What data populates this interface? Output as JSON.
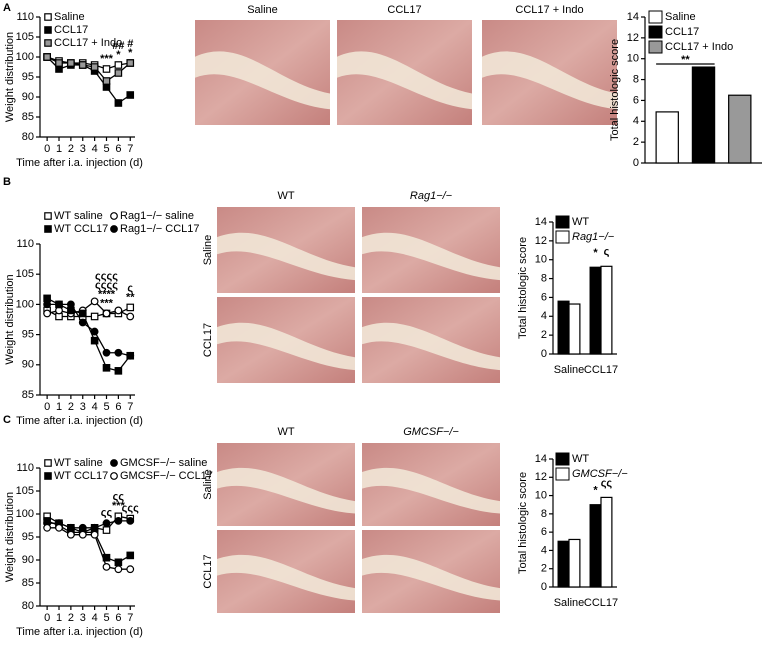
{
  "panel_labels": [
    "A",
    "B",
    "C"
  ],
  "histology": [
    {
      "columns": [
        "Saline",
        "CCL17",
        "CCL17 + Indo"
      ],
      "rows": []
    },
    {
      "columns": [
        "WT",
        "Rag1−/−"
      ],
      "rows": [
        "Saline",
        "CCL17"
      ]
    },
    {
      "columns": [
        "WT",
        "GMCSF−/−"
      ],
      "rows": [
        "Saline",
        "CCL17"
      ]
    }
  ],
  "chart_data": [
    {
      "type": "line",
      "xlabel": "Time after i.a. injection (d)",
      "ylabel": "Weight distribution",
      "x": [
        0,
        1,
        2,
        3,
        4,
        5,
        6,
        7
      ],
      "xlim": [
        -0.6,
        7.4
      ],
      "xticks": [
        0,
        1,
        2,
        3,
        4,
        5,
        6,
        7
      ],
      "ylim": [
        80,
        110
      ],
      "yticks": [
        80,
        85,
        90,
        95,
        100,
        105,
        110
      ],
      "series": [
        {
          "name": "Saline",
          "marker": "square",
          "color": "#ffffff",
          "values": [
            100,
            99,
            98.5,
            98.5,
            98,
            97,
            98,
            98.5
          ]
        },
        {
          "name": "CCL17",
          "marker": "square",
          "color": "#000000",
          "values": [
            100,
            97,
            98,
            98,
            96.5,
            92.5,
            88.5,
            90.5
          ]
        },
        {
          "name": "CCL17 + Indo",
          "marker": "square",
          "color": "#999999",
          "values": [
            100,
            98.5,
            98.5,
            98,
            97.5,
            94,
            96,
            98.5
          ]
        }
      ],
      "annotations": [
        {
          "x": 5,
          "lines": [
            "***"
          ]
        },
        {
          "x": 6,
          "lines": [
            "##",
            "*"
          ]
        },
        {
          "x": 7,
          "lines": [
            "#",
            "*"
          ]
        }
      ]
    },
    {
      "type": "bar",
      "ylabel": "Total histologic score",
      "categories": [
        null
      ],
      "ylim": [
        0,
        14
      ],
      "yticks": [
        0,
        2,
        4,
        6,
        8,
        10,
        12,
        14
      ],
      "series": [
        {
          "name": "Saline",
          "color": "#ffffff",
          "values": [
            4.9
          ]
        },
        {
          "name": "CCL17",
          "color": "#000000",
          "values": [
            9.2
          ]
        },
        {
          "name": "CCL17 + Indo",
          "color": "#999999",
          "values": [
            6.5
          ]
        }
      ],
      "annotations": [
        {
          "text": "**",
          "bars": [
            0,
            1
          ]
        }
      ]
    },
    {
      "type": "line",
      "xlabel": "Time after i.a. injection (d)",
      "ylabel": "Weight distribution",
      "x": [
        0,
        1,
        2,
        3,
        4,
        5,
        6,
        7
      ],
      "xlim": [
        -0.6,
        7.4
      ],
      "xticks": [
        0,
        1,
        2,
        3,
        4,
        5,
        6,
        7
      ],
      "ylim": [
        85,
        110
      ],
      "yticks": [
        85,
        90,
        95,
        100,
        105,
        110
      ],
      "series": [
        {
          "name": "WT saline",
          "marker": "square",
          "color": "#ffffff",
          "values": [
            99,
            98,
            98,
            98,
            98,
            98.5,
            98.5,
            99.5
          ]
        },
        {
          "name": "Rag1−/− saline",
          "marker": "circle",
          "color": "#ffffff",
          "values": [
            98.5,
            99,
            98.5,
            99,
            100.5,
            98.5,
            99,
            98
          ]
        },
        {
          "name": "WT CCL17",
          "marker": "square",
          "color": "#000000",
          "values": [
            101,
            100,
            99,
            98.5,
            94,
            89.5,
            89,
            91.5
          ]
        },
        {
          "name": "Rag1−/− CCL17",
          "marker": "circle",
          "color": "#000000",
          "values": [
            100,
            100,
            100,
            97,
            95.5,
            92,
            92,
            91.5
          ]
        }
      ],
      "annotations": [
        {
          "x": 5,
          "lines": [
            "ςςςς",
            "ςςςς",
            "****",
            "***"
          ]
        },
        {
          "x": 7,
          "lines": [
            "ς",
            "**"
          ]
        }
      ]
    },
    {
      "type": "bar",
      "ylabel": "Total histologic score",
      "categories": [
        "Saline",
        "CCL17"
      ],
      "ylim": [
        0,
        14
      ],
      "yticks": [
        0,
        2,
        4,
        6,
        8,
        10,
        12,
        14
      ],
      "series": [
        {
          "name": "WT",
          "color": "#000000",
          "values": [
            5.6,
            9.2
          ]
        },
        {
          "name": "Rag1−/−",
          "color": "#ffffff",
          "values": [
            5.3,
            9.3
          ]
        }
      ],
      "annotations": [
        {
          "text": "*",
          "series": 0,
          "category": 1
        },
        {
          "text": "ς",
          "series": 1,
          "category": 1
        }
      ]
    },
    {
      "type": "line",
      "xlabel": "Time after i.a. injection (d)",
      "ylabel": "Weight distribution",
      "x": [
        0,
        1,
        2,
        3,
        4,
        5,
        6,
        7
      ],
      "xlim": [
        -0.6,
        7.4
      ],
      "xticks": [
        0,
        1,
        2,
        3,
        4,
        5,
        6,
        7
      ],
      "ylim": [
        80,
        110
      ],
      "yticks": [
        80,
        85,
        90,
        95,
        100,
        105,
        110
      ],
      "series": [
        {
          "name": "WT saline",
          "marker": "square",
          "color": "#ffffff",
          "values": [
            99.5,
            98,
            97,
            96,
            97,
            96.5,
            99.5,
            99
          ]
        },
        {
          "name": "GMCSF−/− saline",
          "marker": "circle",
          "color": "#000000",
          "values": [
            98,
            98,
            97,
            97,
            97,
            98,
            98.5,
            98.5
          ]
        },
        {
          "name": "WT CCL17",
          "marker": "square",
          "color": "#000000",
          "values": [
            98.5,
            97.5,
            96,
            96,
            96,
            90.5,
            89.5,
            91
          ]
        },
        {
          "name": "GMCSF−/− CCL17",
          "marker": "circle",
          "color": "#ffffff",
          "values": [
            97,
            97,
            95.5,
            95.5,
            95.5,
            88.5,
            88,
            88
          ]
        }
      ],
      "annotations": [
        {
          "x": 5,
          "lines": [
            "ςς"
          ]
        },
        {
          "x": 6,
          "lines": [
            "ςς",
            "***"
          ]
        },
        {
          "x": 7,
          "lines": [
            "ςςς"
          ]
        }
      ]
    },
    {
      "type": "bar",
      "ylabel": "Total histologic score",
      "categories": [
        "Saline",
        "CCL17"
      ],
      "ylim": [
        0,
        14
      ],
      "yticks": [
        0,
        2,
        4,
        6,
        8,
        10,
        12,
        14
      ],
      "series": [
        {
          "name": "WT",
          "color": "#000000",
          "values": [
            5,
            9
          ]
        },
        {
          "name": "GMCSF−/−",
          "color": "#ffffff",
          "values": [
            5.2,
            9.8
          ]
        }
      ],
      "annotations": [
        {
          "text": "*",
          "series": 0,
          "category": 1
        },
        {
          "text": "ςς",
          "series": 1,
          "category": 1
        }
      ]
    }
  ]
}
